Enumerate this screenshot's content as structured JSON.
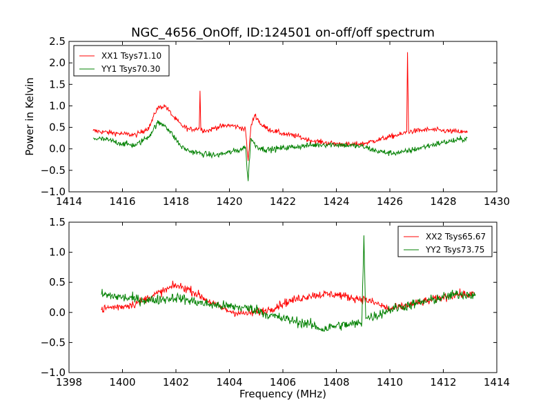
{
  "title": "NGC_4656_OnOff, ID:124501 on-off/off spectrum",
  "chart_data": [
    {
      "type": "line",
      "xlabel": "",
      "ylabel": "Power in Kelvin",
      "xlim": [
        1414,
        1430
      ],
      "ylim": [
        -1.0,
        2.5
      ],
      "xticks": [
        "1414",
        "1416",
        "1418",
        "1420",
        "1422",
        "1424",
        "1426",
        "1428",
        "1430"
      ],
      "yticks": [
        "−1.0",
        "−0.5",
        "0.0",
        "0.5",
        "1.0",
        "1.5",
        "2.0",
        "2.5"
      ],
      "legend_position": "top-left",
      "grid": false,
      "series": [
        {
          "name": "XX1 Tsys71.10",
          "color": "#ff0000",
          "x": [
            1414.9,
            1415.5,
            1416.0,
            1416.5,
            1417.0,
            1417.3,
            1417.6,
            1417.9,
            1418.2,
            1418.5,
            1418.87,
            1418.9,
            1418.93,
            1419.2,
            1419.5,
            1420.0,
            1420.4,
            1420.6,
            1420.7,
            1420.8,
            1420.95,
            1421.2,
            1421.5,
            1422.0,
            1422.5,
            1423.0,
            1423.5,
            1424.0,
            1424.5,
            1425.0,
            1425.5,
            1426.0,
            1426.5,
            1426.63,
            1426.66,
            1426.7,
            1427.0,
            1427.5,
            1428.0,
            1428.5,
            1428.9
          ],
          "values": [
            0.42,
            0.38,
            0.35,
            0.32,
            0.5,
            0.95,
            1.0,
            0.75,
            0.55,
            0.45,
            0.48,
            1.35,
            0.45,
            0.42,
            0.5,
            0.55,
            0.5,
            0.45,
            -0.28,
            0.5,
            0.8,
            0.55,
            0.45,
            0.35,
            0.3,
            0.2,
            0.15,
            0.12,
            0.1,
            0.12,
            0.2,
            0.28,
            0.35,
            0.4,
            2.25,
            0.4,
            0.42,
            0.45,
            0.42,
            0.4,
            0.38
          ]
        },
        {
          "name": "YY1 Tsys70.30",
          "color": "#008000",
          "x": [
            1414.9,
            1415.5,
            1416.0,
            1416.5,
            1417.0,
            1417.3,
            1417.6,
            1417.9,
            1418.2,
            1418.5,
            1419.0,
            1419.5,
            1420.0,
            1420.4,
            1420.6,
            1420.7,
            1420.8,
            1420.95,
            1421.2,
            1421.5,
            1422.0,
            1422.5,
            1423.0,
            1423.5,
            1424.0,
            1424.5,
            1425.0,
            1425.5,
            1426.0,
            1426.5,
            1427.0,
            1427.5,
            1428.0,
            1428.5,
            1428.9
          ],
          "values": [
            0.25,
            0.2,
            0.12,
            0.08,
            0.3,
            0.6,
            0.55,
            0.3,
            0.05,
            -0.05,
            -0.12,
            -0.15,
            -0.08,
            -0.02,
            0.05,
            -0.75,
            0.25,
            0.1,
            0.0,
            -0.02,
            0.02,
            0.05,
            0.08,
            0.1,
            0.1,
            0.08,
            0.05,
            -0.05,
            -0.1,
            -0.08,
            0.0,
            0.08,
            0.15,
            0.2,
            0.25
          ]
        }
      ]
    },
    {
      "type": "line",
      "xlabel": "Frequency (MHz)",
      "ylabel": "",
      "xlim": [
        1398,
        1414
      ],
      "ylim": [
        -1.0,
        1.5
      ],
      "xticks": [
        "1398",
        "1400",
        "1402",
        "1404",
        "1406",
        "1408",
        "1410",
        "1412",
        "1414"
      ],
      "yticks": [
        "−1.0",
        "−0.5",
        "0.0",
        "0.5",
        "1.0",
        "1.5"
      ],
      "legend_position": "top-right",
      "grid": false,
      "series": [
        {
          "name": "XX2 Tsys65.67",
          "color": "#ff0000",
          "x": [
            1399.2,
            1399.5,
            1400.0,
            1400.5,
            1401.0,
            1401.5,
            1402.0,
            1402.5,
            1403.0,
            1403.5,
            1404.0,
            1404.5,
            1405.0,
            1405.5,
            1406.0,
            1406.5,
            1407.0,
            1407.5,
            1408.0,
            1408.5,
            1409.0,
            1409.5,
            1410.0,
            1410.5,
            1411.0,
            1411.5,
            1412.0,
            1412.5,
            1413.2
          ],
          "values": [
            0.05,
            0.08,
            0.1,
            0.15,
            0.25,
            0.35,
            0.45,
            0.38,
            0.25,
            0.12,
            0.02,
            -0.02,
            0.0,
            0.05,
            0.15,
            0.22,
            0.28,
            0.3,
            0.3,
            0.25,
            0.22,
            0.15,
            0.05,
            0.1,
            0.15,
            0.2,
            0.25,
            0.3,
            0.3
          ]
        },
        {
          "name": "YY2 Tsys73.75",
          "color": "#008000",
          "x": [
            1399.2,
            1399.5,
            1400.0,
            1400.5,
            1401.0,
            1401.5,
            1402.0,
            1402.5,
            1403.0,
            1403.5,
            1404.0,
            1404.5,
            1405.0,
            1405.5,
            1406.0,
            1406.5,
            1407.0,
            1407.5,
            1408.0,
            1408.5,
            1408.95,
            1409.03,
            1409.1,
            1409.5,
            1410.0,
            1410.5,
            1411.0,
            1411.5,
            1412.0,
            1412.5,
            1413.2
          ],
          "values": [
            0.3,
            0.28,
            0.25,
            0.22,
            0.2,
            0.22,
            0.25,
            0.2,
            0.15,
            0.12,
            0.1,
            0.08,
            0.05,
            -0.05,
            -0.1,
            -0.15,
            -0.2,
            -0.28,
            -0.22,
            -0.2,
            -0.18,
            1.28,
            -0.1,
            -0.05,
            0.05,
            0.1,
            0.15,
            0.2,
            0.25,
            0.3,
            0.3
          ]
        }
      ]
    }
  ]
}
